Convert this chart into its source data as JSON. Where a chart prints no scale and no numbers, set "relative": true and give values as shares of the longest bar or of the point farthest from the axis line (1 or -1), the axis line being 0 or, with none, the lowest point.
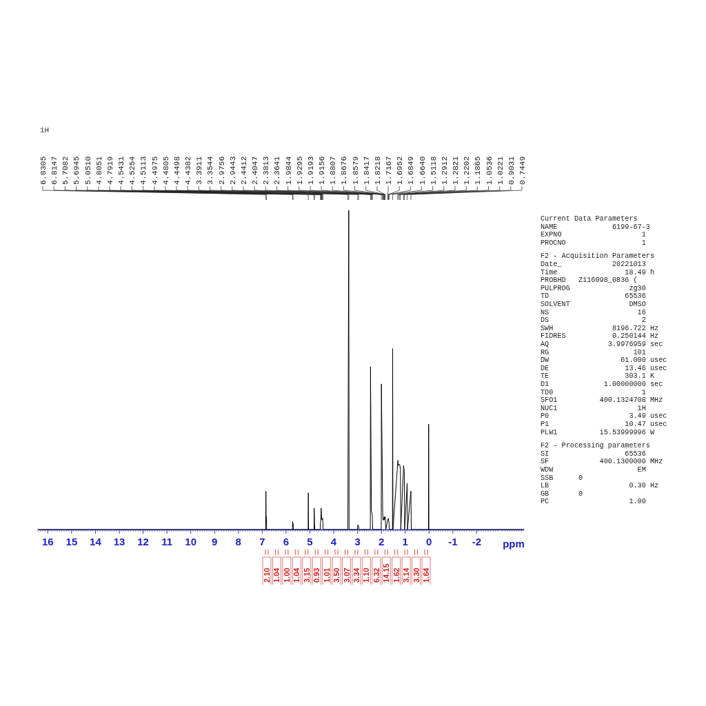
{
  "chart_data": {
    "type": "line",
    "title": "1H",
    "xlabel": "ppm",
    "relative": true,
    "xlim": [
      16.4,
      -4.0
    ],
    "xticks": [
      16,
      15,
      14,
      13,
      12,
      11,
      10,
      9,
      8,
      7,
      6,
      5,
      4,
      3,
      2,
      1,
      0,
      -1,
      -2
    ],
    "grid": false,
    "marker": "none",
    "line_style": "solid",
    "series": [
      {
        "color": "#000000",
        "x": [
          16.4,
          6.84,
          6.8305,
          6.822,
          6.8147,
          6.8,
          5.72,
          5.7082,
          5.7,
          5.6945,
          5.68,
          5.06,
          5.051,
          5.04,
          4.81,
          4.8051,
          4.7919,
          4.78,
          4.55,
          4.5431,
          4.5254,
          4.5113,
          4.4975,
          4.4805,
          4.4498,
          4.4382,
          4.43,
          3.4,
          3.3911,
          3.3544,
          3.34,
          2.99,
          2.9756,
          2.9443,
          2.93,
          2.45,
          2.4412,
          2.4047,
          2.3813,
          2.3641,
          2.35,
          1.99,
          1.9844,
          1.9295,
          1.9193,
          1.9156,
          1.8807,
          1.8676,
          1.8579,
          1.8417,
          1.8218,
          1.8,
          1.7167,
          1.6952,
          1.6849,
          1.664,
          1.65,
          1.52,
          1.5118,
          1.5,
          1.2912,
          1.2821,
          1.2202,
          1.1865,
          1.17,
          1.0536,
          1.0221,
          1.01,
          0.9031,
          0.89,
          0.7449,
          0.73,
          0.01,
          0.0,
          -0.01,
          -4.0
        ],
        "values": [
          0,
          0,
          0.12,
          0.02,
          0.04,
          0,
          0,
          0.025,
          0.01,
          0.02,
          0,
          0,
          0.115,
          0,
          0,
          0.067,
          0.02,
          0,
          0,
          0.02,
          0.03,
          0.067,
          0.04,
          0.03,
          0.035,
          0.02,
          0,
          0,
          0.03,
          1.0,
          0,
          0,
          0.015,
          0.012,
          0,
          0,
          0.51,
          0.06,
          0.05,
          0.04,
          0,
          0,
          0.456,
          0.05,
          0.04,
          0.03,
          0.03,
          0.04,
          0.03,
          0.035,
          0.04,
          0,
          0.03,
          0.035,
          0.03,
          0.02,
          0,
          0,
          0.567,
          0,
          0.217,
          0.2,
          0.205,
          0.19,
          0,
          0.2,
          0.18,
          0,
          0.145,
          0,
          0.12,
          0,
          0,
          0.33,
          0,
          0
        ]
      }
    ],
    "annotations": [
      "Current Data Parameters",
      "NAME             6199-67-3",
      "EXPNO                   1",
      "PROCNO                  1",
      "F2 - Acquisition Parameters",
      "Date_            20221013",
      "Time                18.49 h",
      "PROBHD   Z116098_0836 (",
      "PULPROG              zg30",
      "TD                  65536",
      "SOLVENT              DMSO",
      "NS                     16",
      "DS                      2",
      "SWH              8196.722 Hz",
      "FIDRES           0.250144 Hz",
      "AQ              3.9976959 sec",
      "RG                    101",
      "DW                 61.000 usec",
      "DE                  13.46 usec",
      "TE                  303.1 K",
      "D1             1.00000000 sec",
      "TD0                     1",
      "SFO1          400.1324708 MHz",
      "NUC1                   1H",
      "P0                   3.49 usec",
      "P1                  10.47 usec",
      "PLW1          15.53999996 W",
      "F2 - Processing parameters",
      "SI                  65536",
      "SF            400.1300000 MHz",
      "WDW                    EM",
      "SSB      0",
      "LB                   0.30 Hz",
      "GB       0",
      "PC                   1.00",
      {
        "text": "6.8305",
        "x": 6.8305
      },
      {
        "text": "6.8147",
        "x": 6.8147
      },
      {
        "text": "5.7082",
        "x": 5.7082
      },
      {
        "text": "5.6945",
        "x": 5.6945
      },
      {
        "text": "5.0510",
        "x": 5.051
      },
      {
        "text": "4.8051",
        "x": 4.8051
      },
      {
        "text": "4.7919",
        "x": 4.7919
      },
      {
        "text": "4.5431",
        "x": 4.5431
      },
      {
        "text": "4.5254",
        "x": 4.5254
      },
      {
        "text": "4.5113",
        "x": 4.5113
      },
      {
        "text": "4.4975",
        "x": 4.4975
      },
      {
        "text": "4.4805",
        "x": 4.4805
      },
      {
        "text": "4.4498",
        "x": 4.4498
      },
      {
        "text": "4.4382",
        "x": 4.4382
      },
      {
        "text": "3.3911",
        "x": 3.3911
      },
      {
        "text": "3.3544",
        "x": 3.3544
      },
      {
        "text": "2.9756",
        "x": 2.9756
      },
      {
        "text": "2.9443",
        "x": 2.9443
      },
      {
        "text": "2.4412",
        "x": 2.4412
      },
      {
        "text": "2.4047",
        "x": 2.4047
      },
      {
        "text": "2.3813",
        "x": 2.3813
      },
      {
        "text": "2.3641",
        "x": 2.3641
      },
      {
        "text": "1.9844",
        "x": 1.9844
      },
      {
        "text": "1.9295",
        "x": 1.9295
      },
      {
        "text": "1.9193",
        "x": 1.9193
      },
      {
        "text": "1.9156",
        "x": 1.9156
      },
      {
        "text": "1.8807",
        "x": 1.8807
      },
      {
        "text": "1.8676",
        "x": 1.8676
      },
      {
        "text": "1.8579",
        "x": 1.8579
      },
      {
        "text": "1.8417",
        "x": 1.8417
      },
      {
        "text": "1.8218",
        "x": 1.8218
      },
      {
        "text": "1.7167",
        "x": 1.7167
      },
      {
        "text": "1.6952",
        "x": 1.6952
      },
      {
        "text": "1.6849",
        "x": 1.6849
      },
      {
        "text": "1.6640",
        "x": 1.664
      },
      {
        "text": "1.5118",
        "x": 1.5118
      },
      {
        "text": "1.2912",
        "x": 1.2912
      },
      {
        "text": "1.2821",
        "x": 1.2821
      },
      {
        "text": "1.2202",
        "x": 1.2202
      },
      {
        "text": "1.1865",
        "x": 1.1865
      },
      {
        "text": "1.0536",
        "x": 1.0536
      },
      {
        "text": "1.0221",
        "x": 1.0221
      },
      {
        "text": "0.9031",
        "x": 0.9031
      },
      {
        "text": "0.7449",
        "x": 0.7449
      },
      "2.10",
      "1.04",
      "1.00",
      "1.04",
      "3.15",
      "0.93",
      "1.01",
      "3.50",
      "3.07",
      "3.34",
      "1.10",
      "6.32",
      "14.15",
      "1.62",
      "3.14",
      "3.30",
      "1.64"
    ]
  }
}
